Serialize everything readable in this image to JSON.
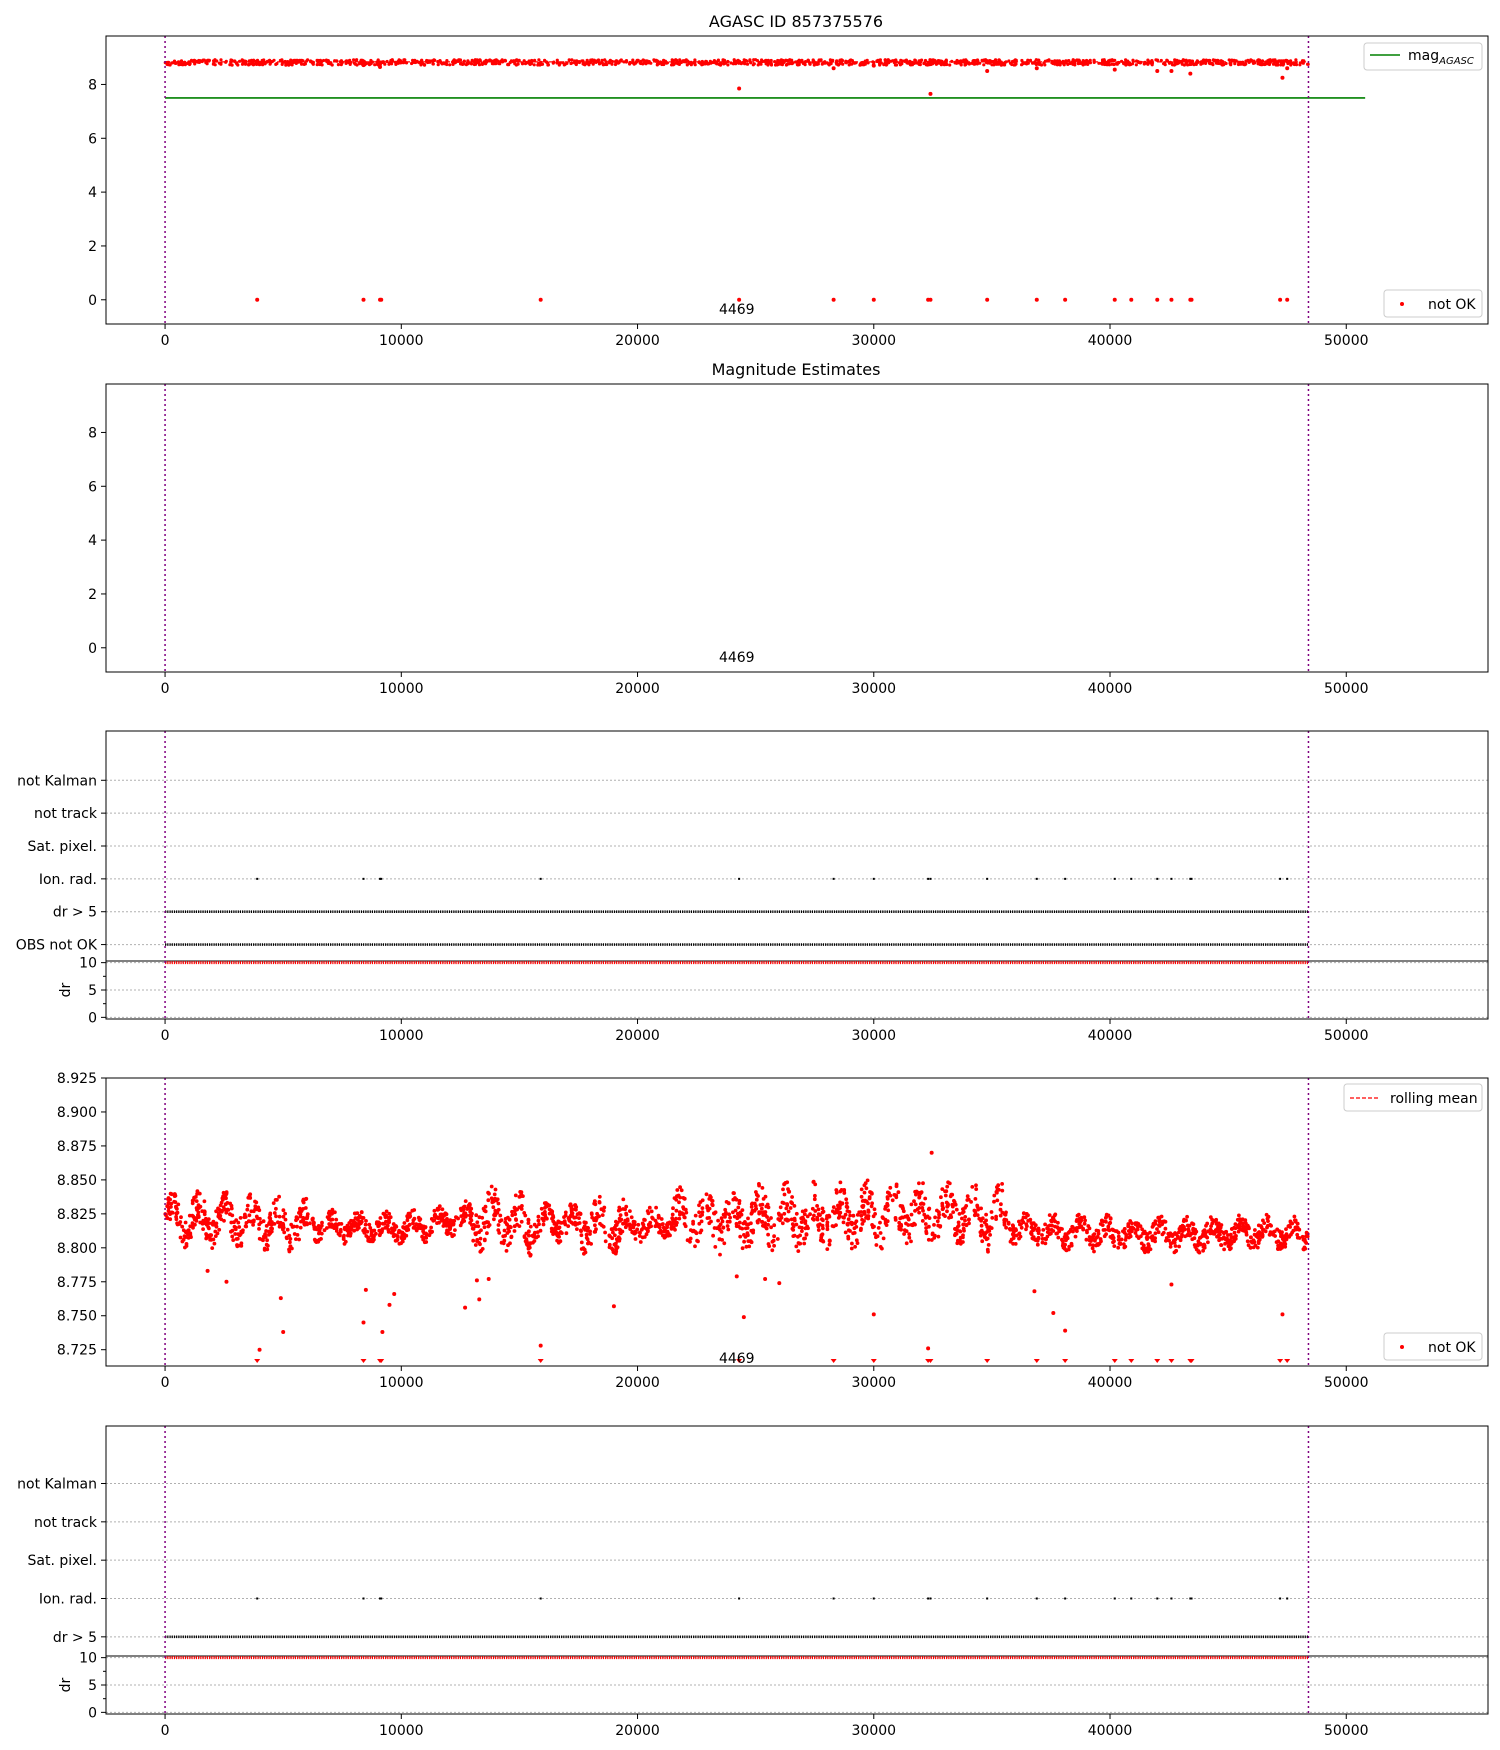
{
  "figure": {
    "panels": [
      {
        "id": "p1",
        "title": "AGASC ID 857375576",
        "xlim": [
          -2500,
          56000
        ],
        "ylim": [
          -0.9,
          9.8
        ],
        "xticks": [
          0,
          10000,
          20000,
          30000,
          40000,
          50000
        ],
        "yticks": [
          0,
          2,
          4,
          6,
          8
        ],
        "vlines": [
          0,
          48400
        ],
        "annotation": {
          "text": "4469",
          "x": 24200,
          "y": -0.35
        },
        "legends": [
          {
            "label": "mag",
            "sub": "AGASC",
            "symbol": "line",
            "color": "#008000",
            "loc": "upper right"
          },
          {
            "label": "not OK",
            "symbol": "dot",
            "color": "#ff0000",
            "loc": "lower right"
          }
        ]
      },
      {
        "id": "p2",
        "title": "Magnitude Estimates",
        "xlim": [
          -2500,
          56000
        ],
        "ylim": [
          -0.9,
          9.8
        ],
        "xticks": [
          0,
          10000,
          20000,
          30000,
          40000,
          50000
        ],
        "yticks": [
          0,
          2,
          4,
          6,
          8
        ],
        "vlines": [
          0,
          48400
        ],
        "annotation": {
          "text": "4469",
          "x": 24200,
          "y": -0.35
        }
      },
      {
        "id": "p3",
        "xlim": [
          -2500,
          56000
        ],
        "ylim": [
          -0.5,
          6.5
        ],
        "xticks": [
          0,
          10000,
          20000,
          30000,
          40000,
          50000
        ],
        "flag_labels": [
          "OBS not OK",
          "dr > 5",
          "Ion. rad.",
          "Sat. pixel.",
          "not track",
          "not Kalman"
        ],
        "vlines": [
          0,
          48400
        ],
        "dr_sub": {
          "ylabel": "dr",
          "ylim": [
            -0.3,
            10.3
          ],
          "yticks": [
            0,
            5,
            10
          ]
        }
      },
      {
        "id": "p4",
        "xlim": [
          -2500,
          56000
        ],
        "ylim": [
          8.713,
          8.925
        ],
        "xticks": [
          0,
          10000,
          20000,
          30000,
          40000,
          50000
        ],
        "yticks": [
          8.725,
          8.75,
          8.775,
          8.8,
          8.825,
          8.85,
          8.875,
          8.9,
          8.925
        ],
        "ytick_labels": [
          "8.725",
          "8.750",
          "8.775",
          "8.800",
          "8.825",
          "8.850",
          "8.875",
          "8.900",
          "8.925"
        ],
        "vlines": [
          0,
          48400
        ],
        "annotation": {
          "text": "4469",
          "x": 24200,
          "y": 8.719
        },
        "legends": [
          {
            "label": "rolling mean",
            "symbol": "dashed",
            "color": "#ff0000",
            "loc": "upper right"
          },
          {
            "label": "not OK",
            "symbol": "dot",
            "color": "#ff0000",
            "loc": "lower right"
          }
        ]
      },
      {
        "id": "p5",
        "xlim": [
          -2500,
          56000
        ],
        "ylim": [
          0.5,
          6.5
        ],
        "xticks": [
          0,
          10000,
          20000,
          30000,
          40000,
          50000
        ],
        "flag_labels": [
          "dr > 5",
          "Ion. rad.",
          "Sat. pixel.",
          "not track",
          "not Kalman"
        ],
        "vlines": [
          0,
          48400
        ],
        "dr_sub": {
          "ylabel": "dr",
          "ylim": [
            -0.3,
            10.3
          ],
          "yticks": [
            0,
            5,
            10
          ]
        }
      }
    ]
  },
  "chart_data": [
    {
      "type": "scatter",
      "title": "AGASC ID 857375576",
      "xlim": [
        -2500,
        56000
      ],
      "ylim": [
        -0.9,
        9.8
      ],
      "series": [
        {
          "name": "mag_AGASC",
          "type": "line",
          "x": [
            0,
            50800
          ],
          "values": [
            7.5,
            7.5
          ]
        },
        {
          "name": "not OK",
          "type": "scatter",
          "mag_band": [
            8.72,
            8.92
          ],
          "x_range": [
            0,
            48400
          ],
          "outliers": [
            [
              4000,
              8.75
            ],
            [
              8400,
              8.72
            ],
            [
              9100,
              8.65
            ],
            [
              24300,
              7.85
            ],
            [
              28300,
              8.6
            ],
            [
              30000,
              8.7
            ],
            [
              32400,
              7.65
            ],
            [
              34800,
              8.5
            ],
            [
              36900,
              8.6
            ],
            [
              40200,
              8.55
            ],
            [
              42000,
              8.5
            ],
            [
              42600,
              8.5
            ],
            [
              43400,
              8.4
            ],
            [
              47300,
              8.25
            ],
            [
              47500,
              8.6
            ]
          ],
          "zero_points_x": [
            3900,
            8400,
            9100,
            9150,
            15900,
            24300,
            28300,
            30000,
            32300,
            32400,
            34800,
            36900,
            38100,
            40200,
            40900,
            42000,
            42600,
            43400,
            43450,
            47200,
            47500
          ]
        }
      ]
    },
    {
      "type": "scatter",
      "title": "Magnitude Estimates",
      "xlim": [
        -2500,
        56000
      ],
      "ylim": [
        -0.9,
        9.8
      ],
      "series": []
    },
    {
      "type": "scatter",
      "flags": {
        "OBS not OK": "continuous 0–48400",
        "dr > 5": "continuous 0–48400",
        "Ion. rad.": [
          3900,
          8400,
          9100,
          9150,
          15900,
          24300,
          28300,
          30000,
          32300,
          32400,
          34800,
          36900,
          38100,
          40200,
          40900,
          42000,
          42600,
          43400,
          43450,
          47200,
          47500
        ]
      },
      "dr": {
        "ylabel": "dr",
        "value": 10,
        "x_range": [
          0,
          48400
        ]
      }
    },
    {
      "type": "scatter",
      "xlim": [
        -2500,
        56000
      ],
      "ylim": [
        8.713,
        8.925
      ],
      "series": [
        {
          "name": "rolling mean",
          "type": "line",
          "values": []
        },
        {
          "name": "not OK",
          "type": "scatter",
          "x_range": [
            0,
            48400
          ],
          "baseline_segments": [
            [
              0,
              8.822
            ],
            [
              3000,
              8.82
            ],
            [
              6000,
              8.816
            ],
            [
              10000,
              8.814
            ],
            [
              13000,
              8.822
            ],
            [
              15000,
              8.818
            ],
            [
              17000,
              8.818
            ],
            [
              20000,
              8.816
            ],
            [
              22000,
              8.82
            ],
            [
              26000,
              8.822
            ],
            [
              30000,
              8.824
            ],
            [
              33000,
              8.825
            ],
            [
              35500,
              8.822
            ],
            [
              36000,
              8.814
            ],
            [
              40000,
              8.81
            ],
            [
              44000,
              8.81
            ],
            [
              46000,
              8.812
            ],
            [
              48400,
              8.81
            ]
          ],
          "outliers": [
            [
              1800,
              8.783
            ],
            [
              2600,
              8.775
            ],
            [
              4000,
              8.725
            ],
            [
              4900,
              8.763
            ],
            [
              5000,
              8.738
            ],
            [
              8400,
              8.745
            ],
            [
              8500,
              8.769
            ],
            [
              9200,
              8.738
            ],
            [
              9500,
              8.758
            ],
            [
              9700,
              8.766
            ],
            [
              12700,
              8.756
            ],
            [
              13200,
              8.776
            ],
            [
              13300,
              8.762
            ],
            [
              13700,
              8.777
            ],
            [
              15900,
              8.728
            ],
            [
              19000,
              8.757
            ],
            [
              24200,
              8.779
            ],
            [
              24500,
              8.749
            ],
            [
              25400,
              8.777
            ],
            [
              26000,
              8.774
            ],
            [
              30000,
              8.751
            ],
            [
              32300,
              8.726
            ],
            [
              32450,
              8.87
            ],
            [
              36800,
              8.768
            ],
            [
              37600,
              8.752
            ],
            [
              38100,
              8.739
            ],
            [
              42600,
              8.773
            ],
            [
              47300,
              8.751
            ]
          ],
          "clipped_x": [
            3900,
            8400,
            9100,
            9150,
            15900,
            24300,
            28300,
            30000,
            32300,
            32400,
            34800,
            36900,
            38100,
            40200,
            40900,
            42000,
            42600,
            43400,
            43450,
            47200,
            47500
          ]
        }
      ]
    },
    {
      "type": "scatter",
      "flags": {
        "dr > 5": "continuous 0–48400",
        "Ion. rad.": [
          3900,
          8400,
          9100,
          9150,
          15900,
          24300,
          28300,
          30000,
          32300,
          32400,
          34800,
          36900,
          38100,
          40200,
          40900,
          42000,
          42600,
          43400,
          43450,
          47200,
          47500
        ]
      },
      "dr": {
        "ylabel": "dr",
        "value": 10,
        "x_range": [
          0,
          48400
        ]
      }
    }
  ]
}
